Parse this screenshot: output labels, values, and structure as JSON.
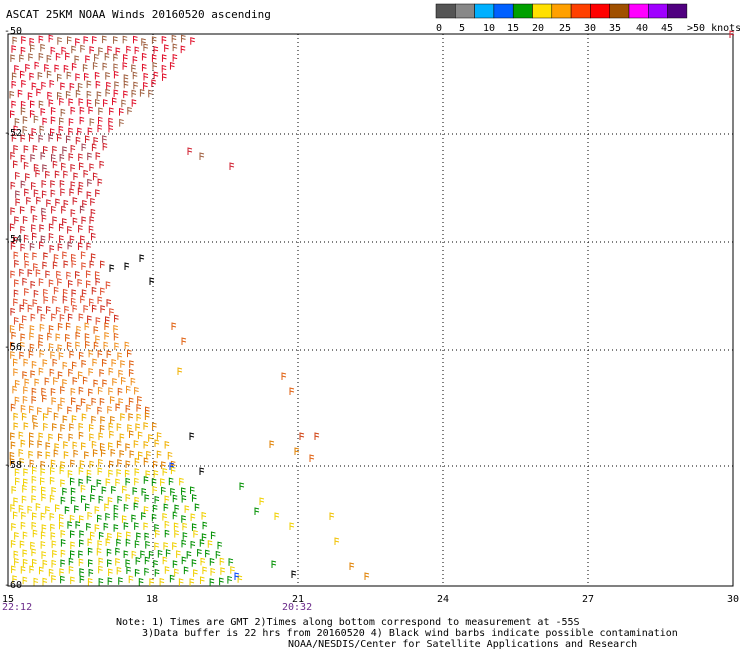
{
  "title": "ASCAT 25KM NOAA Winds 20160520 ascending",
  "color_scale": {
    "labels": [
      "0",
      "5",
      "10",
      "15",
      "20",
      "25",
      "30",
      "35",
      "40",
      "45",
      ">50 knots"
    ],
    "colors": [
      "#555555",
      "#888888",
      "#00b0ff",
      "#0060ff",
      "#00a000",
      "#ffe000",
      "#ffa000",
      "#ff4000",
      "#ff0000",
      "#a05000",
      "#ff00ff",
      "#a000ff",
      "#500080"
    ]
  },
  "map": {
    "lat_labels": [
      "-50",
      "-52",
      "-54",
      "-56",
      "-58",
      "-60"
    ],
    "lon_labels": [
      "15",
      "18",
      "21",
      "24",
      "27",
      "30"
    ],
    "times": [
      "22:12",
      "20:32"
    ]
  },
  "notes": {
    "line1": "Note: 1) Times are GMT 2)Times along bottom correspond to measurement at -55S",
    "line2": "3)Data buffer is 22 hrs from 20160520 4) Black wind barbs indicate possible contamination",
    "line3": "NOAA/NESDIS/Center for Satellite Applications and Research"
  }
}
